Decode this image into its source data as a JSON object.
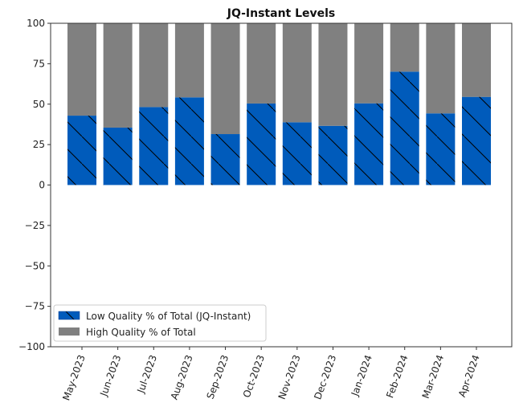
{
  "chart_data": {
    "type": "bar",
    "stacked": true,
    "title": "JQ-Instant Levels",
    "xlabel": "",
    "ylabel": "",
    "ylim": [
      -100,
      100
    ],
    "yticks": [
      100,
      75,
      50,
      25,
      0,
      -25,
      -50,
      -75,
      -100
    ],
    "categories": [
      "May-2023",
      "Jun-2023",
      "Jul-2023",
      "Aug-2023",
      "Sep-2023",
      "Oct-2023",
      "Nov-2023",
      "Dec-2023",
      "Jan-2024",
      "Feb-2024",
      "Mar-2024",
      "Apr-2024"
    ],
    "series": [
      {
        "name": "Low Quality % of Total (JQ-Instant)",
        "color": "#005bbb",
        "hatch": "\\",
        "values": [
          42.9,
          35.5,
          48.2,
          54.2,
          31.5,
          50.4,
          38.8,
          36.6,
          50.5,
          70.1,
          44.3,
          54.5
        ]
      },
      {
        "name": "High Quality % of Total",
        "color": "#808080",
        "values": [
          57.1,
          64.5,
          51.8,
          45.8,
          68.5,
          49.6,
          61.2,
          63.4,
          49.5,
          29.9,
          55.7,
          45.5
        ]
      }
    ],
    "legend_position": "lower-left",
    "grid": false
  }
}
